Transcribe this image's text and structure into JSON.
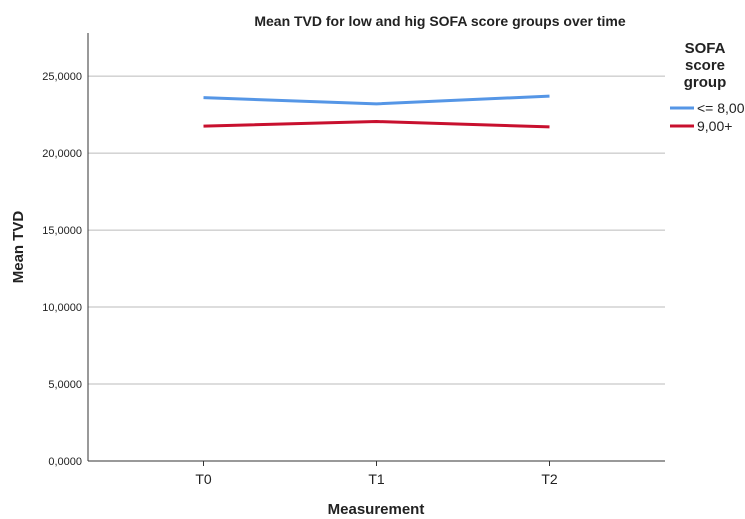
{
  "chart_data": {
    "type": "line",
    "title": "Mean TVD for low and hig SOFA score groups over time",
    "x_label": "Measurement",
    "y_label": "Mean TVD",
    "categories": [
      "T0",
      "T1",
      "T2"
    ],
    "legend_title": "SOFA score group",
    "series": [
      {
        "name": "<= 8,00",
        "color": "#5596e6",
        "values": [
          23600,
          23200,
          23700
        ]
      },
      {
        "name": "9,00+",
        "color": "#c8102e",
        "values": [
          21750,
          22050,
          21700
        ]
      }
    ],
    "ylim": [
      0,
      27800
    ],
    "yticks": [
      {
        "value": 0,
        "label": "0,0000"
      },
      {
        "value": 5000,
        "label": "5,0000"
      },
      {
        "value": 10000,
        "label": "10,0000"
      },
      {
        "value": 15000,
        "label": "15,0000"
      },
      {
        "value": 20000,
        "label": "20,0000"
      },
      {
        "value": 25000,
        "label": "25,0000"
      }
    ],
    "grid": true
  }
}
